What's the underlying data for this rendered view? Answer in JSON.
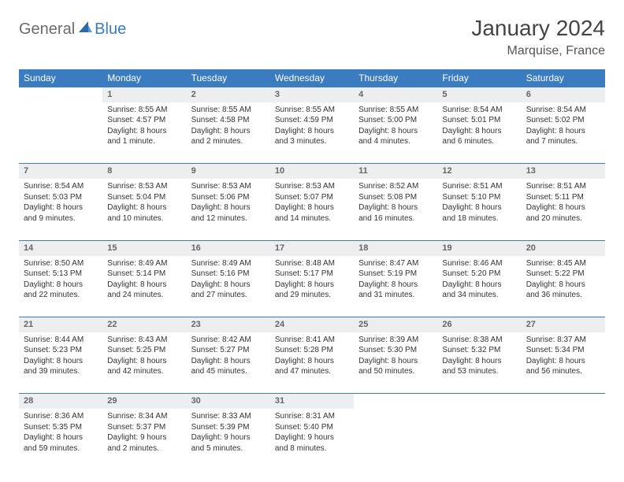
{
  "header": {
    "logo_general": "General",
    "logo_blue": "Blue",
    "month_title": "January 2024",
    "location": "Marquise, France"
  },
  "colors": {
    "brand_blue": "#3b7bbf",
    "header_gray": "#eceeef",
    "text": "#333333",
    "muted": "#666666"
  },
  "day_headers": [
    "Sunday",
    "Monday",
    "Tuesday",
    "Wednesday",
    "Thursday",
    "Friday",
    "Saturday"
  ],
  "weeks": [
    [
      null,
      {
        "n": "1",
        "sr": "Sunrise: 8:55 AM",
        "ss": "Sunset: 4:57 PM",
        "dl": "Daylight: 8 hours and 1 minute."
      },
      {
        "n": "2",
        "sr": "Sunrise: 8:55 AM",
        "ss": "Sunset: 4:58 PM",
        "dl": "Daylight: 8 hours and 2 minutes."
      },
      {
        "n": "3",
        "sr": "Sunrise: 8:55 AM",
        "ss": "Sunset: 4:59 PM",
        "dl": "Daylight: 8 hours and 3 minutes."
      },
      {
        "n": "4",
        "sr": "Sunrise: 8:55 AM",
        "ss": "Sunset: 5:00 PM",
        "dl": "Daylight: 8 hours and 4 minutes."
      },
      {
        "n": "5",
        "sr": "Sunrise: 8:54 AM",
        "ss": "Sunset: 5:01 PM",
        "dl": "Daylight: 8 hours and 6 minutes."
      },
      {
        "n": "6",
        "sr": "Sunrise: 8:54 AM",
        "ss": "Sunset: 5:02 PM",
        "dl": "Daylight: 8 hours and 7 minutes."
      }
    ],
    [
      {
        "n": "7",
        "sr": "Sunrise: 8:54 AM",
        "ss": "Sunset: 5:03 PM",
        "dl": "Daylight: 8 hours and 9 minutes."
      },
      {
        "n": "8",
        "sr": "Sunrise: 8:53 AM",
        "ss": "Sunset: 5:04 PM",
        "dl": "Daylight: 8 hours and 10 minutes."
      },
      {
        "n": "9",
        "sr": "Sunrise: 8:53 AM",
        "ss": "Sunset: 5:06 PM",
        "dl": "Daylight: 8 hours and 12 minutes."
      },
      {
        "n": "10",
        "sr": "Sunrise: 8:53 AM",
        "ss": "Sunset: 5:07 PM",
        "dl": "Daylight: 8 hours and 14 minutes."
      },
      {
        "n": "11",
        "sr": "Sunrise: 8:52 AM",
        "ss": "Sunset: 5:08 PM",
        "dl": "Daylight: 8 hours and 16 minutes."
      },
      {
        "n": "12",
        "sr": "Sunrise: 8:51 AM",
        "ss": "Sunset: 5:10 PM",
        "dl": "Daylight: 8 hours and 18 minutes."
      },
      {
        "n": "13",
        "sr": "Sunrise: 8:51 AM",
        "ss": "Sunset: 5:11 PM",
        "dl": "Daylight: 8 hours and 20 minutes."
      }
    ],
    [
      {
        "n": "14",
        "sr": "Sunrise: 8:50 AM",
        "ss": "Sunset: 5:13 PM",
        "dl": "Daylight: 8 hours and 22 minutes."
      },
      {
        "n": "15",
        "sr": "Sunrise: 8:49 AM",
        "ss": "Sunset: 5:14 PM",
        "dl": "Daylight: 8 hours and 24 minutes."
      },
      {
        "n": "16",
        "sr": "Sunrise: 8:49 AM",
        "ss": "Sunset: 5:16 PM",
        "dl": "Daylight: 8 hours and 27 minutes."
      },
      {
        "n": "17",
        "sr": "Sunrise: 8:48 AM",
        "ss": "Sunset: 5:17 PM",
        "dl": "Daylight: 8 hours and 29 minutes."
      },
      {
        "n": "18",
        "sr": "Sunrise: 8:47 AM",
        "ss": "Sunset: 5:19 PM",
        "dl": "Daylight: 8 hours and 31 minutes."
      },
      {
        "n": "19",
        "sr": "Sunrise: 8:46 AM",
        "ss": "Sunset: 5:20 PM",
        "dl": "Daylight: 8 hours and 34 minutes."
      },
      {
        "n": "20",
        "sr": "Sunrise: 8:45 AM",
        "ss": "Sunset: 5:22 PM",
        "dl": "Daylight: 8 hours and 36 minutes."
      }
    ],
    [
      {
        "n": "21",
        "sr": "Sunrise: 8:44 AM",
        "ss": "Sunset: 5:23 PM",
        "dl": "Daylight: 8 hours and 39 minutes."
      },
      {
        "n": "22",
        "sr": "Sunrise: 8:43 AM",
        "ss": "Sunset: 5:25 PM",
        "dl": "Daylight: 8 hours and 42 minutes."
      },
      {
        "n": "23",
        "sr": "Sunrise: 8:42 AM",
        "ss": "Sunset: 5:27 PM",
        "dl": "Daylight: 8 hours and 45 minutes."
      },
      {
        "n": "24",
        "sr": "Sunrise: 8:41 AM",
        "ss": "Sunset: 5:28 PM",
        "dl": "Daylight: 8 hours and 47 minutes."
      },
      {
        "n": "25",
        "sr": "Sunrise: 8:39 AM",
        "ss": "Sunset: 5:30 PM",
        "dl": "Daylight: 8 hours and 50 minutes."
      },
      {
        "n": "26",
        "sr": "Sunrise: 8:38 AM",
        "ss": "Sunset: 5:32 PM",
        "dl": "Daylight: 8 hours and 53 minutes."
      },
      {
        "n": "27",
        "sr": "Sunrise: 8:37 AM",
        "ss": "Sunset: 5:34 PM",
        "dl": "Daylight: 8 hours and 56 minutes."
      }
    ],
    [
      {
        "n": "28",
        "sr": "Sunrise: 8:36 AM",
        "ss": "Sunset: 5:35 PM",
        "dl": "Daylight: 8 hours and 59 minutes."
      },
      {
        "n": "29",
        "sr": "Sunrise: 8:34 AM",
        "ss": "Sunset: 5:37 PM",
        "dl": "Daylight: 9 hours and 2 minutes."
      },
      {
        "n": "30",
        "sr": "Sunrise: 8:33 AM",
        "ss": "Sunset: 5:39 PM",
        "dl": "Daylight: 9 hours and 5 minutes."
      },
      {
        "n": "31",
        "sr": "Sunrise: 8:31 AM",
        "ss": "Sunset: 5:40 PM",
        "dl": "Daylight: 9 hours and 8 minutes."
      },
      null,
      null,
      null
    ]
  ]
}
